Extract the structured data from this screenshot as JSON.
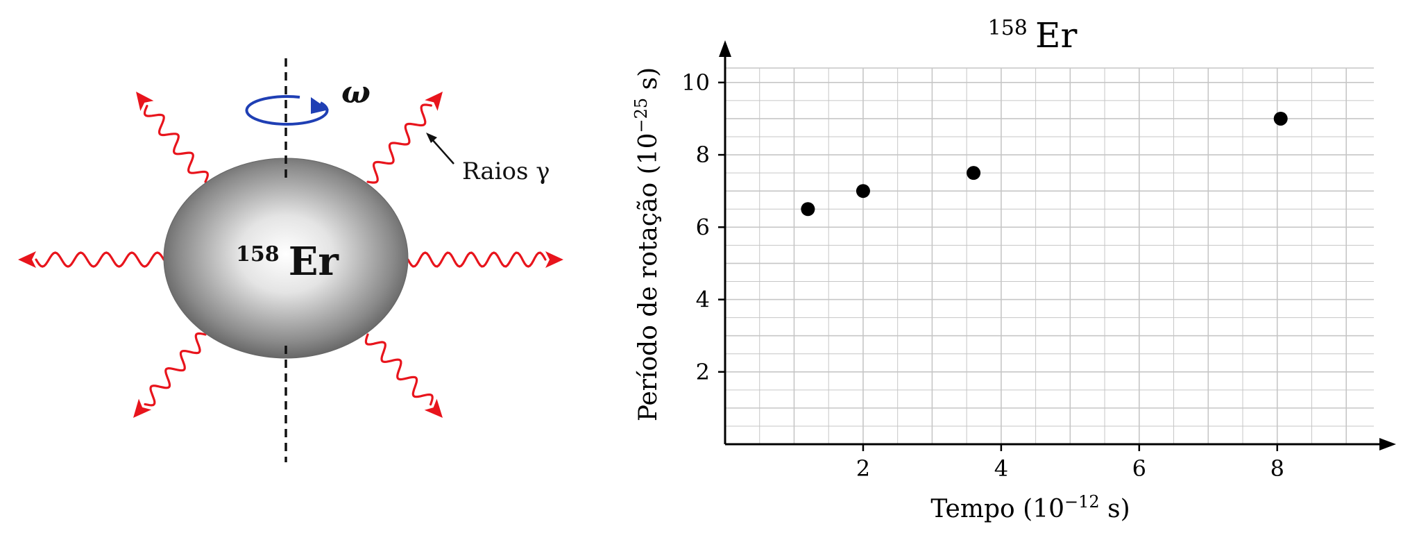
{
  "diagram": {
    "nucleus": {
      "mass_number": "158",
      "symbol": "Er"
    },
    "omega_label": "ω",
    "rays_label": "Raios γ",
    "colors": {
      "ray": "#e8141c",
      "rotation": "#1f3fb4",
      "axis": "#111111"
    }
  },
  "chart_data": {
    "type": "scatter",
    "title_mass": "158",
    "title_symbol": "Er",
    "x_label_base": "Tempo (10",
    "x_label_exp": "−12",
    "x_label_unit": " s)",
    "y_label_base": "Período de rotação (10",
    "y_label_exp": "−25",
    "y_label_unit": " s)",
    "x_range": [
      0,
      9.4
    ],
    "y_range": [
      0,
      10.4
    ],
    "x_ticks": [
      2,
      4,
      6,
      8
    ],
    "y_ticks": [
      2,
      4,
      6,
      8,
      10
    ],
    "grid": true,
    "points": [
      {
        "x": 1.2,
        "y": 6.5
      },
      {
        "x": 2.0,
        "y": 7.0
      },
      {
        "x": 3.6,
        "y": 7.5
      },
      {
        "x": 8.05,
        "y": 9.0
      }
    ],
    "colors": {
      "point": "#000000",
      "grid": "#c6c6c6",
      "axis": "#000000"
    }
  }
}
